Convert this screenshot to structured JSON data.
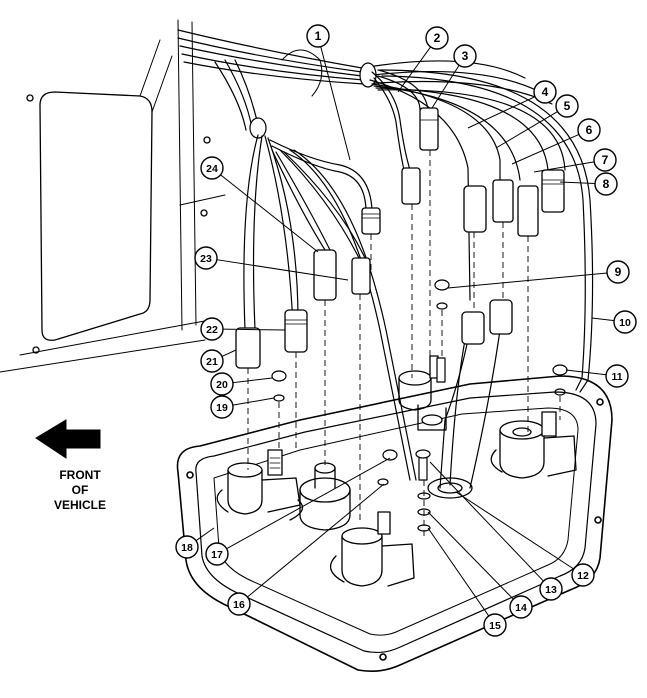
{
  "figure": {
    "front_label": [
      "FRONT",
      "OF",
      "VEHICLE"
    ],
    "callouts": [
      {
        "id": 1,
        "label": "1"
      },
      {
        "id": 2,
        "label": "2"
      },
      {
        "id": 3,
        "label": "3"
      },
      {
        "id": 4,
        "label": "4"
      },
      {
        "id": 5,
        "label": "5"
      },
      {
        "id": 6,
        "label": "6"
      },
      {
        "id": 7,
        "label": "7"
      },
      {
        "id": 8,
        "label": "8"
      },
      {
        "id": 9,
        "label": "9"
      },
      {
        "id": 10,
        "label": "10"
      },
      {
        "id": 11,
        "label": "11"
      },
      {
        "id": 12,
        "label": "12"
      },
      {
        "id": 13,
        "label": "13"
      },
      {
        "id": 14,
        "label": "14"
      },
      {
        "id": 15,
        "label": "15"
      },
      {
        "id": 16,
        "label": "16"
      },
      {
        "id": 17,
        "label": "17"
      },
      {
        "id": 18,
        "label": "18"
      },
      {
        "id": 19,
        "label": "19"
      },
      {
        "id": 20,
        "label": "20"
      },
      {
        "id": 21,
        "label": "21"
      },
      {
        "id": 22,
        "label": "22"
      },
      {
        "id": 23,
        "label": "23"
      },
      {
        "id": 24,
        "label": "24"
      }
    ]
  }
}
